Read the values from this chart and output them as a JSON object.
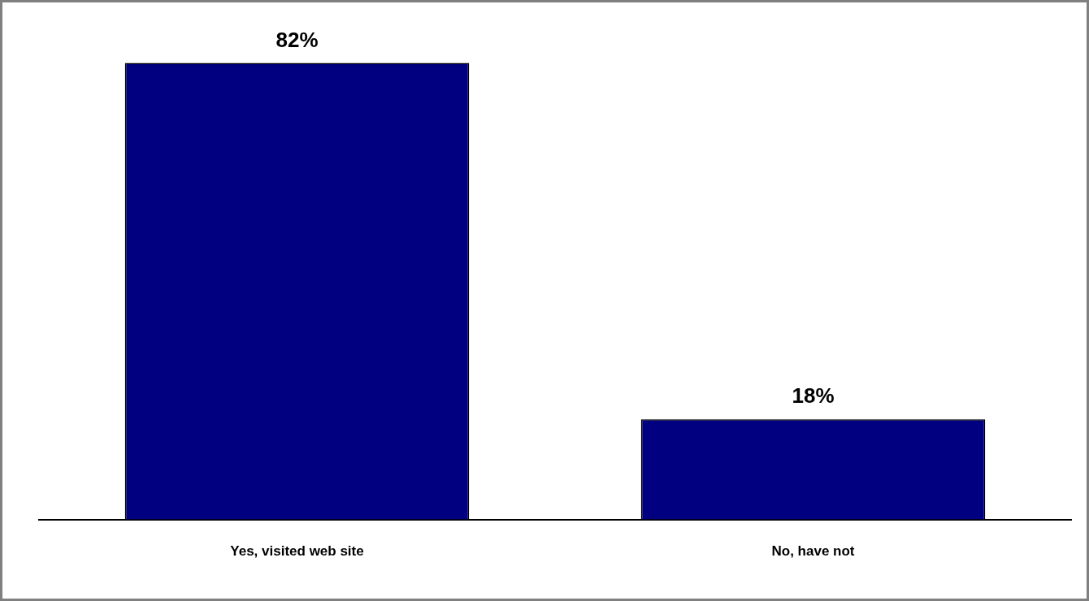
{
  "chart_data": {
    "type": "bar",
    "relative": false,
    "categories": [
      "Yes, visited web site",
      "No, have not"
    ],
    "values": [
      82,
      18
    ],
    "color": "#000080",
    "value_labels": [
      "82%",
      "18%"
    ]
  }
}
